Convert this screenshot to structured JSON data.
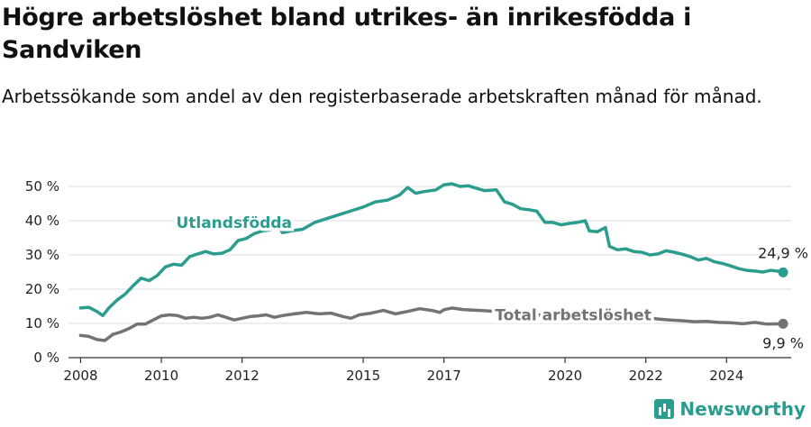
{
  "title": "Högre arbetslöshet bland utrikes- än inrikesfödda i Sandviken",
  "subtitle": "Arbetssökande som andel av den registerbaserade arbetskraften månad för månad.",
  "brand": "Newsworthy",
  "colors": {
    "foreign": "#2a9d8f",
    "total": "#737373",
    "grid": "#dddddd"
  },
  "chart_data": {
    "type": "line",
    "ylim": [
      0,
      55
    ],
    "xlim": [
      2007.7,
      2025.6
    ],
    "yticks": [
      0,
      10,
      20,
      30,
      40,
      50
    ],
    "ytick_labels": [
      "0 %",
      "10 %",
      "20 %",
      "30 %",
      "40 %",
      "50 %"
    ],
    "xticks": [
      2008,
      2010,
      2012,
      2015,
      2017,
      2020,
      2022,
      2024
    ],
    "xtick_labels": [
      "2008",
      "2010",
      "2012",
      "2015",
      "2017",
      "2020",
      "2022",
      "2024"
    ],
    "series": [
      {
        "name": "Utlandsfödda",
        "end_label": "24,9 %",
        "points": [
          [
            2008.0,
            14.5
          ],
          [
            2008.2,
            14.7
          ],
          [
            2008.4,
            13.5
          ],
          [
            2008.55,
            12.3
          ],
          [
            2008.7,
            14.5
          ],
          [
            2008.9,
            16.8
          ],
          [
            2009.1,
            18.5
          ],
          [
            2009.3,
            21.0
          ],
          [
            2009.5,
            23.2
          ],
          [
            2009.7,
            22.5
          ],
          [
            2009.9,
            24.0
          ],
          [
            2010.1,
            26.5
          ],
          [
            2010.3,
            27.3
          ],
          [
            2010.5,
            27.0
          ],
          [
            2010.7,
            29.5
          ],
          [
            2010.9,
            30.3
          ],
          [
            2011.1,
            31.0
          ],
          [
            2011.3,
            30.3
          ],
          [
            2011.5,
            30.5
          ],
          [
            2011.7,
            31.5
          ],
          [
            2011.9,
            34.2
          ],
          [
            2012.1,
            34.8
          ],
          [
            2012.3,
            36.2
          ],
          [
            2012.5,
            37.0
          ],
          [
            2012.7,
            37.3
          ],
          [
            2012.9,
            38.3
          ],
          [
            2013.0,
            36.5
          ],
          [
            2013.2,
            37.0
          ],
          [
            2013.5,
            37.5
          ],
          [
            2013.8,
            39.5
          ],
          [
            2014.2,
            41.0
          ],
          [
            2014.6,
            42.5
          ],
          [
            2015.0,
            44.0
          ],
          [
            2015.3,
            45.5
          ],
          [
            2015.6,
            46.0
          ],
          [
            2015.9,
            47.5
          ],
          [
            2016.1,
            49.7
          ],
          [
            2016.3,
            48.0
          ],
          [
            2016.5,
            48.5
          ],
          [
            2016.8,
            49.0
          ],
          [
            2017.0,
            50.5
          ],
          [
            2017.2,
            50.8
          ],
          [
            2017.4,
            50.0
          ],
          [
            2017.6,
            50.2
          ],
          [
            2017.8,
            49.5
          ],
          [
            2018.0,
            48.8
          ],
          [
            2018.3,
            49.0
          ],
          [
            2018.5,
            45.5
          ],
          [
            2018.7,
            44.8
          ],
          [
            2018.9,
            43.5
          ],
          [
            2019.1,
            43.2
          ],
          [
            2019.3,
            42.8
          ],
          [
            2019.5,
            39.5
          ],
          [
            2019.7,
            39.5
          ],
          [
            2019.9,
            38.8
          ],
          [
            2020.1,
            39.2
          ],
          [
            2020.3,
            39.5
          ],
          [
            2020.5,
            40.0
          ],
          [
            2020.6,
            37.0
          ],
          [
            2020.8,
            36.8
          ],
          [
            2021.0,
            38.0
          ],
          [
            2021.1,
            32.5
          ],
          [
            2021.3,
            31.5
          ],
          [
            2021.5,
            31.8
          ],
          [
            2021.7,
            31.0
          ],
          [
            2021.9,
            30.8
          ],
          [
            2022.1,
            30.0
          ],
          [
            2022.3,
            30.3
          ],
          [
            2022.5,
            31.2
          ],
          [
            2022.7,
            30.8
          ],
          [
            2022.9,
            30.2
          ],
          [
            2023.1,
            29.5
          ],
          [
            2023.3,
            28.5
          ],
          [
            2023.5,
            29.0
          ],
          [
            2023.7,
            28.0
          ],
          [
            2023.9,
            27.5
          ],
          [
            2024.1,
            26.8
          ],
          [
            2024.3,
            26.0
          ],
          [
            2024.5,
            25.5
          ],
          [
            2024.7,
            25.3
          ],
          [
            2024.9,
            25.0
          ],
          [
            2025.1,
            25.5
          ],
          [
            2025.3,
            25.2
          ],
          [
            2025.4,
            24.9
          ]
        ]
      },
      {
        "name": "Total arbetslöshet",
        "end_label": "9,9 %",
        "points": [
          [
            2008.0,
            6.5
          ],
          [
            2008.2,
            6.2
          ],
          [
            2008.4,
            5.3
          ],
          [
            2008.6,
            5.0
          ],
          [
            2008.8,
            6.8
          ],
          [
            2009.0,
            7.5
          ],
          [
            2009.2,
            8.5
          ],
          [
            2009.4,
            9.8
          ],
          [
            2009.6,
            9.8
          ],
          [
            2009.8,
            11.0
          ],
          [
            2010.0,
            12.2
          ],
          [
            2010.2,
            12.5
          ],
          [
            2010.4,
            12.3
          ],
          [
            2010.6,
            11.5
          ],
          [
            2010.8,
            11.8
          ],
          [
            2011.0,
            11.5
          ],
          [
            2011.2,
            11.8
          ],
          [
            2011.4,
            12.5
          ],
          [
            2011.6,
            11.8
          ],
          [
            2011.8,
            11.0
          ],
          [
            2012.0,
            11.5
          ],
          [
            2012.2,
            12.0
          ],
          [
            2012.4,
            12.2
          ],
          [
            2012.6,
            12.5
          ],
          [
            2012.8,
            11.8
          ],
          [
            2013.0,
            12.3
          ],
          [
            2013.3,
            12.8
          ],
          [
            2013.6,
            13.2
          ],
          [
            2013.9,
            12.8
          ],
          [
            2014.2,
            13.0
          ],
          [
            2014.5,
            12.0
          ],
          [
            2014.7,
            11.5
          ],
          [
            2014.9,
            12.5
          ],
          [
            2015.2,
            13.0
          ],
          [
            2015.5,
            13.8
          ],
          [
            2015.8,
            12.8
          ],
          [
            2016.1,
            13.5
          ],
          [
            2016.4,
            14.3
          ],
          [
            2016.7,
            13.8
          ],
          [
            2016.9,
            13.2
          ],
          [
            2017.0,
            14.0
          ],
          [
            2017.2,
            14.5
          ],
          [
            2017.5,
            14.0
          ],
          [
            2017.9,
            13.8
          ],
          [
            2018.3,
            13.5
          ],
          [
            2018.7,
            13.0
          ],
          [
            2019.1,
            12.8
          ],
          [
            2019.5,
            12.3
          ],
          [
            2019.9,
            12.0
          ],
          [
            2020.3,
            12.5
          ],
          [
            2020.6,
            12.8
          ],
          [
            2020.9,
            12.3
          ],
          [
            2021.2,
            11.5
          ],
          [
            2021.5,
            11.0
          ],
          [
            2021.8,
            10.8
          ],
          [
            2022.0,
            11.8
          ],
          [
            2022.3,
            11.3
          ],
          [
            2022.6,
            11.0
          ],
          [
            2022.9,
            10.8
          ],
          [
            2023.2,
            10.5
          ],
          [
            2023.5,
            10.6
          ],
          [
            2023.8,
            10.3
          ],
          [
            2024.1,
            10.2
          ],
          [
            2024.4,
            9.9
          ],
          [
            2024.7,
            10.3
          ],
          [
            2025.0,
            9.8
          ],
          [
            2025.4,
            9.9
          ]
        ]
      }
    ]
  }
}
